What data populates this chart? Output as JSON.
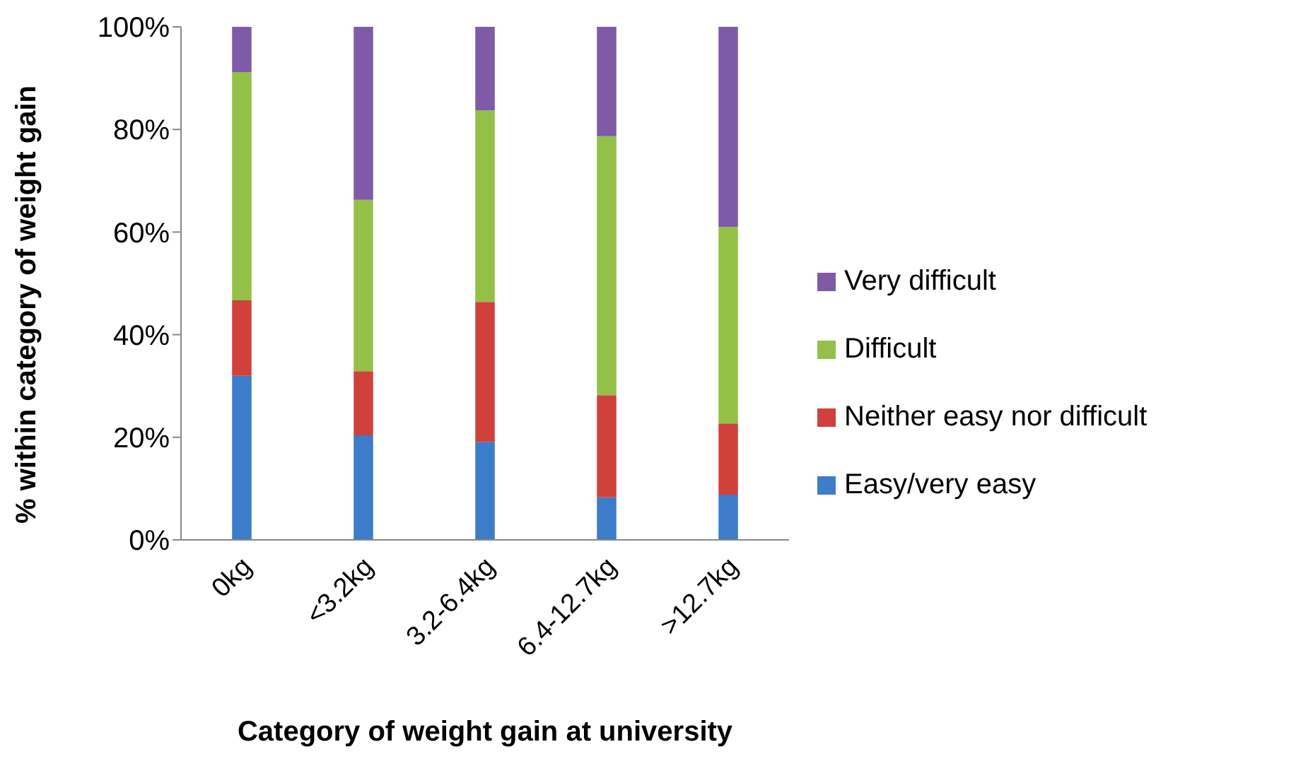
{
  "chart_data": {
    "type": "bar",
    "stacked": true,
    "xlabel": "Category of weight gain at university",
    "ylabel": "% within category of weight gain",
    "categories": [
      "0kg",
      "<3.2kg",
      "3.2-6.4kg",
      "6.4-12.7kg",
      ">12.7kg"
    ],
    "series": [
      {
        "name": "Easy/very easy",
        "color": "#3d7cc9",
        "values": [
          32.0,
          20.4,
          19.1,
          8.3,
          8.8
        ]
      },
      {
        "name": "Neither easy nor difficult",
        "color": "#d0413b",
        "values": [
          14.7,
          12.5,
          27.3,
          19.9,
          13.9
        ]
      },
      {
        "name": "Difficult",
        "color": "#93c047",
        "values": [
          44.5,
          33.4,
          37.3,
          50.5,
          38.3
        ]
      },
      {
        "name": "Very difficult",
        "color": "#7f5aa6",
        "values": [
          8.8,
          33.7,
          16.3,
          21.3,
          39.0
        ]
      }
    ],
    "ylim": [
      0,
      100
    ],
    "yticks": [
      {
        "value": 0,
        "label": "0%"
      },
      {
        "value": 20,
        "label": "20%"
      },
      {
        "value": 40,
        "label": "40%"
      },
      {
        "value": 60,
        "label": "60%"
      },
      {
        "value": 80,
        "label": "80%"
      },
      {
        "value": 100,
        "label": "100%"
      }
    ],
    "grid": false,
    "legend": "right"
  }
}
